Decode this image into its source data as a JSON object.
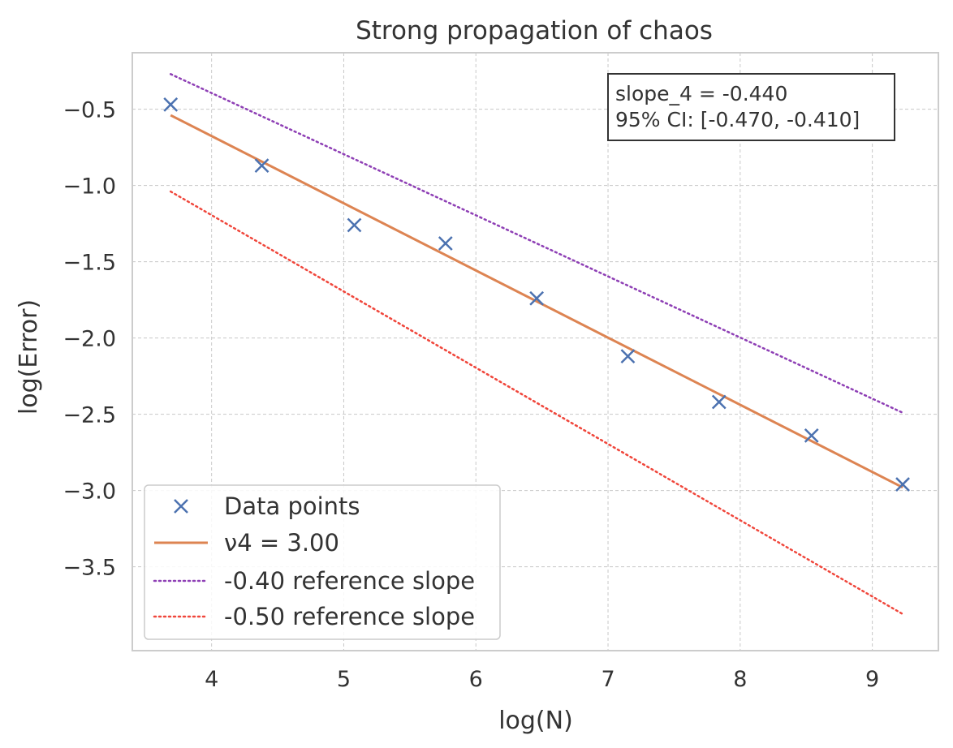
{
  "chart_data": {
    "type": "line",
    "title": "Strong propagation of chaos",
    "xlabel": "log(N)",
    "ylabel": "log(Error)",
    "xlim": [
      3.4,
      9.5
    ],
    "ylim": [
      -4.05,
      -0.13
    ],
    "xticks": [
      4,
      5,
      6,
      7,
      8,
      9
    ],
    "xtick_labels": [
      "4",
      "5",
      "6",
      "7",
      "8",
      "9"
    ],
    "yticks": [
      -3.5,
      -3.0,
      -2.5,
      -2.0,
      -1.5,
      -1.0,
      -0.5
    ],
    "ytick_labels": [
      "−3.5",
      "−3.0",
      "−2.5",
      "−2.0",
      "−1.5",
      "−1.0",
      "−0.5"
    ],
    "grid": true,
    "legend_position": "lower-left",
    "series": [
      {
        "name": "Data points",
        "kind": "scatter",
        "marker": "x",
        "color": "#4c72b0",
        "x": [
          3.69,
          4.38,
          5.08,
          5.77,
          6.46,
          7.15,
          7.84,
          8.54,
          9.23
        ],
        "y": [
          -0.47,
          -0.87,
          -1.26,
          -1.38,
          -1.74,
          -2.12,
          -2.42,
          -2.64,
          -2.96
        ]
      },
      {
        "name": "ν4 = 3.00",
        "kind": "line",
        "style": "solid",
        "color": "#dd8452",
        "x": [
          3.69,
          9.23
        ],
        "y": [
          -0.54,
          -2.98
        ]
      },
      {
        "name": "-0.40 reference slope",
        "kind": "line",
        "style": "dotted",
        "color": "#8e3fb5",
        "x": [
          3.69,
          9.23
        ],
        "y": [
          -0.27,
          -2.49
        ]
      },
      {
        "name": "-0.50 reference slope",
        "kind": "line",
        "style": "dotted",
        "color": "#f0473c",
        "x": [
          3.69,
          9.23
        ],
        "y": [
          -1.04,
          -3.81
        ]
      }
    ],
    "annotation": {
      "line1": "slope_4 = -0.440",
      "line2": "95% CI: [-0.470, -0.410]",
      "position": "top-right"
    }
  }
}
